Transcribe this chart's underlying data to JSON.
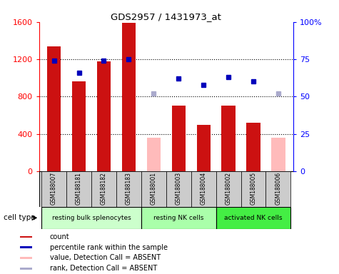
{
  "title": "GDS2957 / 1431973_at",
  "samples": [
    "GSM188007",
    "GSM188181",
    "GSM188182",
    "GSM188183",
    "GSM188001",
    "GSM188003",
    "GSM188004",
    "GSM188002",
    "GSM188005",
    "GSM188006"
  ],
  "counts": [
    1340,
    960,
    1180,
    1590,
    null,
    700,
    500,
    700,
    520,
    null
  ],
  "counts_absent": [
    null,
    null,
    null,
    null,
    360,
    null,
    null,
    null,
    null,
    360
  ],
  "percentile_ranks": [
    74,
    66,
    74,
    75,
    null,
    62,
    58,
    63,
    60,
    null
  ],
  "percentile_ranks_absent": [
    null,
    null,
    null,
    null,
    52,
    null,
    null,
    null,
    null,
    52
  ],
  "ylim_left": [
    0,
    1600
  ],
  "ylim_right": [
    0,
    100
  ],
  "yticks_left": [
    0,
    400,
    800,
    1200,
    1600
  ],
  "yticks_right": [
    0,
    25,
    50,
    75,
    100
  ],
  "yticklabels_right": [
    "0",
    "25",
    "50",
    "75",
    "100%"
  ],
  "bar_color_present": "#cc1111",
  "bar_color_absent": "#ffbbbb",
  "dot_color_present": "#0000bb",
  "dot_color_absent": "#aaaacc",
  "cell_type_groups": [
    {
      "label": "resting bulk splenocytes",
      "start": 0,
      "end": 4,
      "color": "#ccffcc"
    },
    {
      "label": "resting NK cells",
      "start": 4,
      "end": 7,
      "color": "#aaffaa"
    },
    {
      "label": "activated NK cells",
      "start": 7,
      "end": 10,
      "color": "#44ee44"
    }
  ],
  "legend_items": [
    {
      "label": "count",
      "color": "#cc1111"
    },
    {
      "label": "percentile rank within the sample",
      "color": "#0000bb"
    },
    {
      "label": "value, Detection Call = ABSENT",
      "color": "#ffbbbb"
    },
    {
      "label": "rank, Detection Call = ABSENT",
      "color": "#aaaacc"
    }
  ],
  "cell_type_label": "cell type",
  "background_color": "#ffffff",
  "sample_area_color": "#cccccc"
}
